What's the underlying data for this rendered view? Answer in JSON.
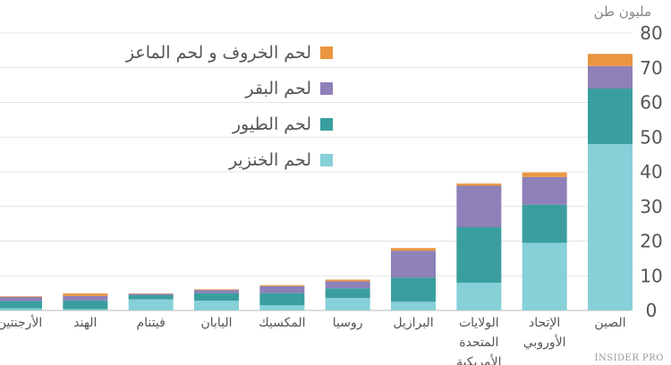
{
  "chart_data": {
    "type": "stacked_bar",
    "unit_label": "مليون طن",
    "logo": "INSIDER PRO",
    "categories": [
      "الأرجنتين",
      "الهند",
      "فيتنام",
      "اليابان",
      "المكسيك",
      "روسيا",
      "البرازيل",
      "الولايات المتحدة الأمريكية",
      "الإتحاد الأوروبي",
      "الصين"
    ],
    "series": [
      {
        "name": "لحم الخنزير",
        "color": "#86d0d8",
        "values": [
          0.6,
          0.4,
          3.2,
          2.8,
          1.5,
          3.6,
          2.5,
          8,
          19.5,
          48
        ]
      },
      {
        "name": "لحم الطيور",
        "color": "#3a9e9e",
        "values": [
          2.1,
          2.5,
          1.2,
          2.2,
          3.5,
          2.8,
          7,
          16,
          11,
          16
        ]
      },
      {
        "name": "لحم البقر",
        "color": "#8e80b8",
        "values": [
          1.2,
          1.3,
          0.4,
          0.9,
          2,
          2,
          7.7,
          12,
          8,
          6.5
        ]
      },
      {
        "name": "لحم الخروف و لحم الماعز",
        "color": "#ea9640",
        "values": [
          0.2,
          0.7,
          0.1,
          0.2,
          0.3,
          0.5,
          0.8,
          0.6,
          1.3,
          3.5
        ]
      }
    ],
    "ylim": [
      0,
      80
    ],
    "yticks": [
      0,
      10,
      20,
      30,
      40,
      50,
      60,
      70,
      80
    ],
    "grid": true,
    "legend": "top-left"
  }
}
